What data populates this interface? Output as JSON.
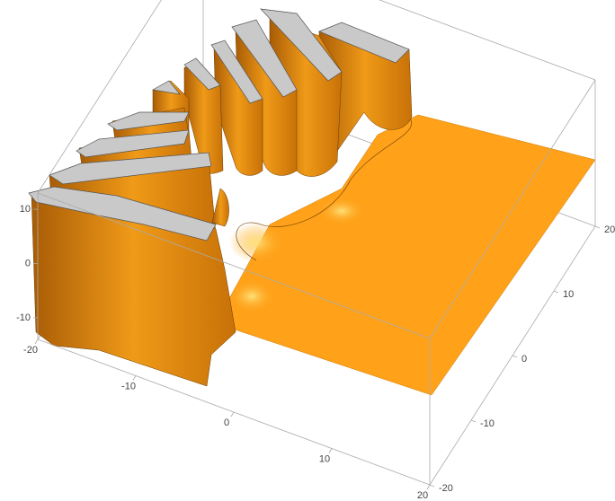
{
  "chart_data": {
    "type": "surface3d",
    "xlim": [
      -20,
      20
    ],
    "xticks": [
      -20,
      -10,
      0,
      10,
      20
    ],
    "ylim": [
      -20,
      20
    ],
    "yticks": [
      -20,
      -10,
      0,
      10,
      20
    ],
    "zlim": [
      -14,
      13
    ],
    "zticks": [
      -10,
      0,
      10
    ],
    "color": "#ffa21a"
  }
}
